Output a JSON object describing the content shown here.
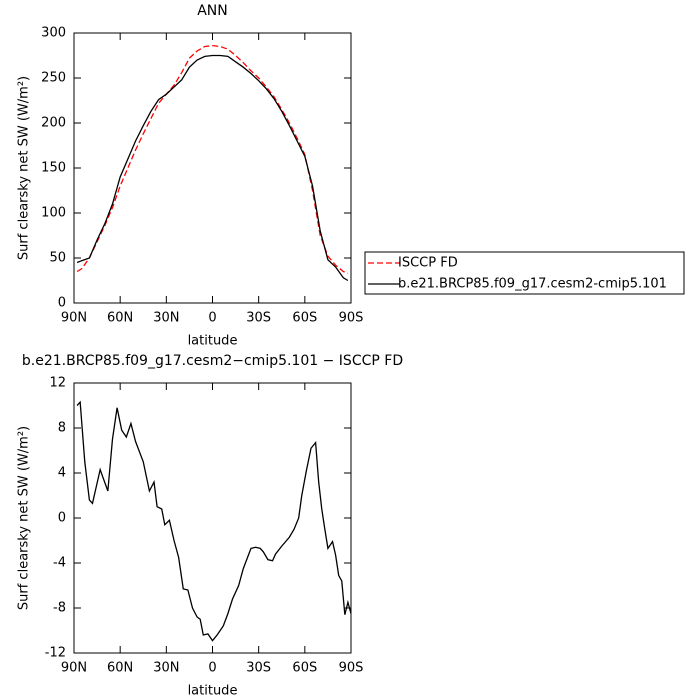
{
  "chart_data": [
    {
      "type": "line",
      "title": "ANN",
      "x_label": "latitude",
      "y_label": "Surf clearsky net SW (W/m²)",
      "x": [
        88,
        85,
        80,
        75,
        70,
        65,
        60,
        55,
        50,
        45,
        40,
        35,
        30,
        25,
        20,
        15,
        10,
        5,
        0,
        -5,
        -10,
        -15,
        -20,
        -25,
        -30,
        -35,
        -40,
        -45,
        -50,
        -55,
        -60,
        -65,
        -70,
        -75,
        -80,
        -85,
        -88
      ],
      "series": [
        {
          "name": "ISCCP FD",
          "color": "#ff0000",
          "dashed": true,
          "values": [
            35,
            38,
            50,
            68,
            86,
            106,
            130,
            150,
            170,
            188,
            205,
            222,
            232,
            242,
            256,
            272,
            280,
            285,
            286,
            285,
            282,
            275,
            267,
            258,
            250,
            240,
            229,
            215,
            200,
            183,
            165,
            125,
            75,
            52,
            42,
            35,
            33
          ]
        },
        {
          "name": "b.e21.BRCP85.f09_g17.cesm2-cmip5.101",
          "color": "#000000",
          "dashed": false,
          "values": [
            45,
            47,
            50,
            70,
            88,
            110,
            140,
            160,
            180,
            197,
            213,
            226,
            232,
            240,
            248,
            262,
            270,
            274,
            275,
            275,
            274,
            268,
            262,
            255,
            247,
            238,
            227,
            213,
            197,
            180,
            163,
            130,
            80,
            48,
            40,
            28,
            25
          ]
        }
      ],
      "xlim": [
        90,
        -90
      ],
      "xticks": [
        {
          "value": 90,
          "label": "90N"
        },
        {
          "value": 60,
          "label": "60N"
        },
        {
          "value": 30,
          "label": "30N"
        },
        0,
        {
          "value": -30,
          "label": "30S"
        },
        {
          "value": -60,
          "label": "60S"
        },
        {
          "value": -90,
          "label": "90S"
        }
      ],
      "ylim": [
        0,
        300
      ],
      "yticks": [
        0,
        50,
        100,
        150,
        200,
        250,
        300
      ],
      "legend": "outside-right"
    },
    {
      "type": "line",
      "title": "b.e21.BRCP85.f09_g17.cesm2−cmip5.101 − ISCCP FD",
      "x_label": "latitude",
      "y_label": "Surf clearsky net SW (W/m²)",
      "x": [
        88,
        86,
        83,
        80,
        78,
        73,
        68,
        65,
        62,
        59,
        56,
        53,
        50,
        45,
        41,
        38,
        36,
        33,
        31,
        28,
        25,
        22,
        19,
        16,
        13,
        10,
        8,
        6,
        3,
        0,
        -3,
        -7,
        -10,
        -13,
        -17,
        -20,
        -25,
        -28,
        -31,
        -33,
        -36,
        -39,
        -41,
        -45,
        -50,
        -53,
        -56,
        -58,
        -61,
        -64,
        -67,
        -69,
        -71,
        -73,
        -75,
        -78,
        -80,
        -82,
        -84,
        -86,
        -88,
        -90
      ],
      "values": [
        10,
        10.3,
        5,
        1.6,
        1.3,
        4.3,
        2.4,
        7,
        9.8,
        7.8,
        7.2,
        8.4,
        6.8,
        5,
        2.4,
        3.2,
        1,
        0.8,
        -0.6,
        -0.2,
        -2,
        -3.5,
        -6.3,
        -6.4,
        -8,
        -8.8,
        -9,
        -10.4,
        -10.3,
        -10.9,
        -10.4,
        -9.6,
        -8.5,
        -7.2,
        -6,
        -4.5,
        -2.7,
        -2.6,
        -2.7,
        -3,
        -3.7,
        -3.8,
        -3.2,
        -2.5,
        -1.7,
        -1,
        0,
        2,
        4.2,
        6.2,
        6.7,
        3.2,
        0.8,
        -1,
        -2.7,
        -2.1,
        -3.3,
        -5.1,
        -5.6,
        -8.6,
        -7.5,
        -8.5
      ],
      "color": "#000000",
      "xlim": [
        90,
        -90
      ],
      "xticks": [
        {
          "value": 90,
          "label": "90N"
        },
        {
          "value": 60,
          "label": "60N"
        },
        {
          "value": 30,
          "label": "30N"
        },
        0,
        {
          "value": -30,
          "label": "30S"
        },
        {
          "value": -60,
          "label": "60S"
        },
        {
          "value": -90,
          "label": "90S"
        }
      ],
      "ylim": [
        -12,
        12
      ],
      "yticks": [
        -12,
        -8,
        -4,
        0,
        4,
        8,
        12
      ]
    }
  ]
}
